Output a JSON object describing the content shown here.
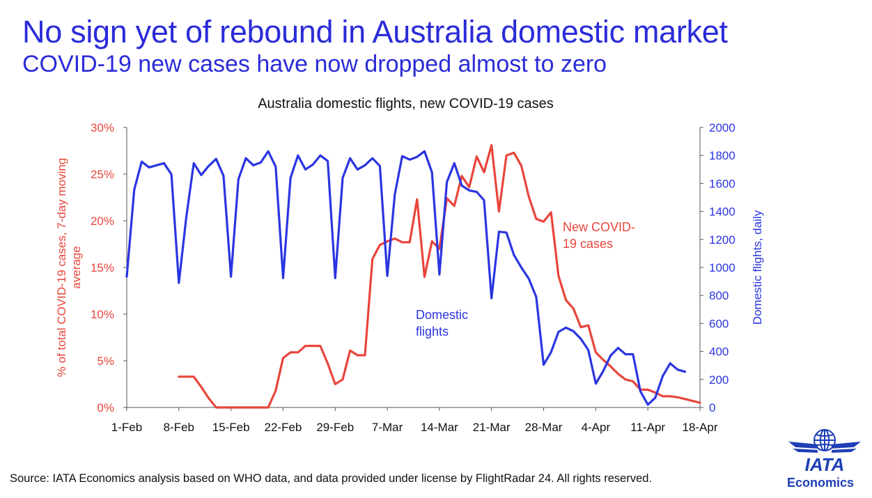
{
  "header": {
    "title": "No sign yet of rebound in Australia domestic market",
    "subtitle": "COVID-19 new cases have now dropped almost to zero"
  },
  "footer": {
    "source": "Source: IATA Economics analysis based on WHO data, and data provided under license by FlightRadar 24. All rights reserved.",
    "logo_text": "IATA",
    "logo_subtext": "Economics"
  },
  "colors": {
    "cases": "#e8453c",
    "flights": "#2a35e0",
    "brand": "#2b2bd9"
  },
  "chart_data": {
    "type": "line",
    "title": "Australia domestic flights, new COVID-19 cases",
    "x_tick_labels": [
      "1-Feb",
      "8-Feb",
      "15-Feb",
      "22-Feb",
      "29-Feb",
      "7-Mar",
      "14-Mar",
      "21-Mar",
      "28-Mar",
      "4-Apr",
      "11-Apr",
      "18-Apr"
    ],
    "x_day_range": [
      0,
      77
    ],
    "y_left": {
      "label": "% of total COVID-19 cases, 7-day moving average",
      "range": [
        0,
        30
      ],
      "ticks": [
        "0%",
        "5%",
        "10%",
        "15%",
        "20%",
        "25%",
        "30%"
      ]
    },
    "y_right": {
      "label": "Domestic flights, daily",
      "range": [
        0,
        2000
      ],
      "ticks": [
        "0",
        "200",
        "400",
        "600",
        "800",
        "1000",
        "1200",
        "1400",
        "1600",
        "1800",
        "2000"
      ]
    },
    "series": [
      {
        "name": "New COVID-19 cases",
        "axis": "left",
        "color": "#e8453c",
        "x": [
          7,
          8,
          9,
          10,
          11,
          12,
          13,
          14,
          15,
          16,
          17,
          18,
          19,
          20,
          21,
          22,
          23,
          24,
          25,
          26,
          27,
          28,
          29,
          30,
          31,
          32,
          33,
          34,
          35,
          36,
          37,
          38,
          39,
          40,
          41,
          42,
          43,
          44,
          45,
          46,
          47,
          48,
          49,
          50,
          51,
          52,
          53,
          54,
          55,
          56,
          57,
          58,
          59,
          60,
          61,
          62,
          63,
          64,
          65,
          66,
          67,
          68,
          69,
          70,
          71,
          72,
          73,
          74,
          75,
          76,
          77
        ],
        "y": [
          3.3,
          3.3,
          3.3,
          2.2,
          1.0,
          0,
          0,
          0,
          0,
          0,
          0,
          0,
          0,
          1.8,
          5.3,
          5.9,
          5.9,
          6.6,
          6.6,
          6.6,
          4.7,
          2.5,
          3.0,
          6.1,
          5.6,
          5.6,
          15.9,
          17.4,
          17.8,
          18.1,
          17.7,
          17.7,
          22.3,
          14.0,
          17.8,
          17.0,
          22.4,
          21.6,
          24.8,
          23.6,
          26.9,
          25.2,
          28.1,
          21.0,
          27.0,
          27.3,
          25.9,
          22.6,
          20.2,
          19.9,
          20.9,
          14.1,
          11.5,
          10.6,
          8.6,
          8.8,
          5.9,
          5.1,
          4.4,
          3.6,
          3.0,
          2.8,
          1.9,
          1.9,
          1.6,
          1.2,
          1.2,
          1.1,
          0.9,
          0.7,
          0.5
        ]
      },
      {
        "name": "Domestic flights",
        "axis": "right",
        "color": "#2a35e0",
        "x": [
          0,
          1,
          2,
          3,
          4,
          5,
          6,
          7,
          8,
          9,
          10,
          11,
          12,
          13,
          14,
          15,
          16,
          17,
          18,
          19,
          20,
          21,
          22,
          23,
          24,
          25,
          26,
          27,
          28,
          29,
          30,
          31,
          32,
          33,
          34,
          35,
          36,
          37,
          38,
          39,
          40,
          41,
          42,
          43,
          44,
          45,
          46,
          47,
          48,
          49,
          50,
          51,
          52,
          53,
          54,
          55,
          56,
          57,
          58,
          59,
          60,
          61,
          62,
          63,
          64,
          65,
          66,
          67,
          68,
          69,
          70,
          71,
          72,
          73,
          74,
          75
        ],
        "y": [
          935,
          1555,
          1755,
          1715,
          1730,
          1745,
          1665,
          890,
          1360,
          1745,
          1660,
          1725,
          1775,
          1655,
          935,
          1630,
          1780,
          1730,
          1750,
          1830,
          1720,
          925,
          1640,
          1800,
          1700,
          1735,
          1800,
          1760,
          925,
          1640,
          1780,
          1700,
          1730,
          1780,
          1725,
          940,
          1520,
          1795,
          1770,
          1790,
          1830,
          1680,
          950,
          1610,
          1745,
          1585,
          1550,
          1540,
          1480,
          780,
          1255,
          1250,
          1090,
          1000,
          920,
          790,
          305,
          395,
          540,
          570,
          545,
          490,
          410,
          170,
          260,
          370,
          425,
          380,
          380,
          115,
          20,
          70,
          225,
          315,
          270,
          255
        ]
      }
    ],
    "annotations": [
      {
        "text_lines": [
          "New COVID-",
          "19 cases"
        ],
        "series": "New COVID-19 cases"
      },
      {
        "text_lines": [
          "Domestic",
          "flights"
        ],
        "series": "Domestic flights"
      }
    ],
    "grid": false,
    "legend": "inline labels"
  }
}
